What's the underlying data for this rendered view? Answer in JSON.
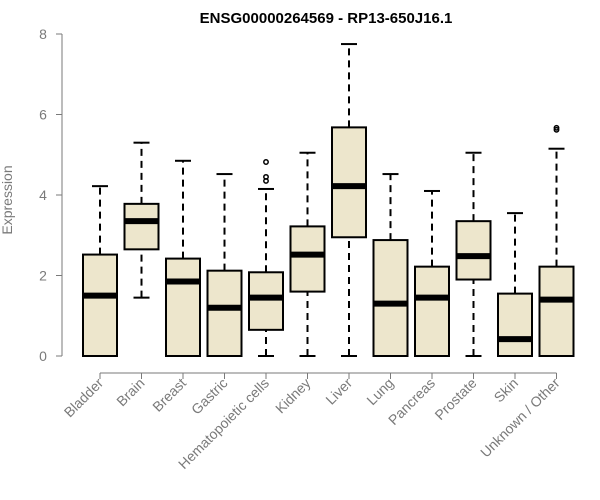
{
  "chart_data": {
    "type": "boxplot",
    "title": "ENSG00000264569 - RP13-650J16.1",
    "ylabel": "Expression",
    "ylim": [
      0,
      8
    ],
    "yticks": [
      0,
      2,
      4,
      6,
      8
    ],
    "grid": false,
    "colors": {
      "box_fill": "#ede6cc",
      "box_stroke": "#000000",
      "axis": "#7a7a7a"
    },
    "categories": [
      "Bladder",
      "Brain",
      "Breast",
      "Gastric",
      "Hematopoietic cells",
      "Kidney",
      "Liver",
      "Lung",
      "Pancreas",
      "Prostate",
      "Skin",
      "Unknown / Other"
    ],
    "boxes": [
      {
        "min": 0,
        "q1": 0,
        "median": 1.5,
        "q3": 2.52,
        "max": 4.22,
        "outliers": []
      },
      {
        "min": 1.45,
        "q1": 2.65,
        "median": 3.35,
        "q3": 3.78,
        "max": 5.3,
        "outliers": []
      },
      {
        "min": 0,
        "q1": 0,
        "median": 1.85,
        "q3": 2.42,
        "max": 4.85,
        "outliers": []
      },
      {
        "min": 0,
        "q1": 0,
        "median": 1.2,
        "q3": 2.12,
        "max": 4.52,
        "outliers": []
      },
      {
        "min": 0,
        "q1": 0.65,
        "median": 1.45,
        "q3": 2.08,
        "max": 4.15,
        "outliers": [
          4.35,
          4.45,
          4.82
        ]
      },
      {
        "min": 0,
        "q1": 1.6,
        "median": 2.52,
        "q3": 3.22,
        "max": 5.05,
        "outliers": []
      },
      {
        "min": 0,
        "q1": 2.95,
        "median": 4.22,
        "q3": 5.68,
        "max": 7.75,
        "outliers": []
      },
      {
        "min": 0,
        "q1": 0,
        "median": 1.3,
        "q3": 2.88,
        "max": 4.52,
        "outliers": []
      },
      {
        "min": 0,
        "q1": 0,
        "median": 1.45,
        "q3": 2.22,
        "max": 4.1,
        "outliers": []
      },
      {
        "min": 0,
        "q1": 1.9,
        "median": 2.48,
        "q3": 3.35,
        "max": 5.05,
        "outliers": []
      },
      {
        "min": 0,
        "q1": 0,
        "median": 0.42,
        "q3": 1.55,
        "max": 3.55,
        "outliers": []
      },
      {
        "min": 0,
        "q1": 0,
        "median": 1.4,
        "q3": 2.22,
        "max": 5.15,
        "outliers": [
          5.62,
          5.67
        ]
      }
    ]
  }
}
